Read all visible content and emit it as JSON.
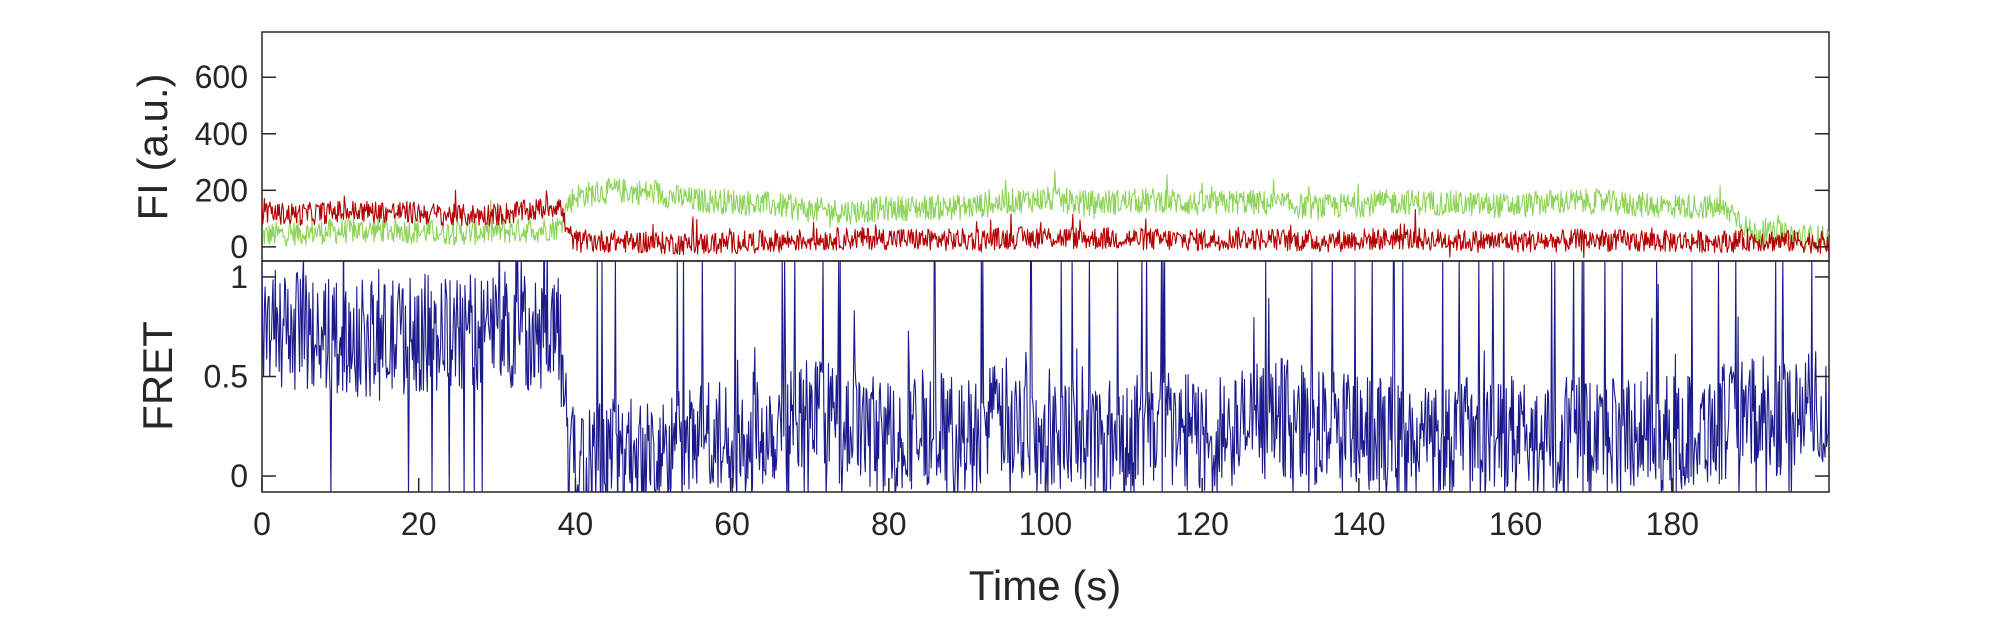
{
  "chart_data": [
    {
      "type": "line",
      "ylabel": "FI (a.u.)",
      "xlim": [
        0,
        200
      ],
      "ylim": [
        -50,
        760
      ],
      "yticks": [
        0,
        200,
        400,
        600
      ],
      "ytick_labels": [
        "0",
        "200",
        "400",
        "600"
      ],
      "grid": false,
      "series": [
        {
          "color": "#8fd45a",
          "x": [
            0,
            5,
            10,
            15,
            20,
            25,
            30,
            35,
            38,
            39,
            40,
            45,
            50,
            55,
            60,
            65,
            70,
            75,
            80,
            85,
            90,
            95,
            100,
            105,
            110,
            115,
            120,
            125,
            130,
            135,
            140,
            145,
            150,
            155,
            160,
            165,
            170,
            175,
            180,
            185,
            188,
            190,
            195,
            200
          ],
          "values": [
            40,
            50,
            55,
            60,
            55,
            50,
            55,
            60,
            70,
            150,
            180,
            200,
            190,
            165,
            160,
            150,
            130,
            125,
            135,
            140,
            140,
            160,
            170,
            155,
            160,
            165,
            150,
            160,
            150,
            140,
            150,
            160,
            155,
            150,
            145,
            160,
            160,
            150,
            145,
            140,
            120,
            50,
            40,
            30
          ],
          "noise": 45
        },
        {
          "color": "#b30000",
          "x": [
            0,
            5,
            10,
            15,
            20,
            25,
            30,
            35,
            38,
            39,
            40,
            45,
            50,
            55,
            60,
            65,
            70,
            75,
            80,
            85,
            90,
            95,
            100,
            105,
            110,
            115,
            120,
            125,
            130,
            135,
            140,
            145,
            150,
            155,
            160,
            165,
            170,
            175,
            180,
            185,
            188,
            190,
            195,
            200
          ],
          "values": [
            120,
            115,
            125,
            125,
            120,
            110,
            115,
            130,
            150,
            50,
            20,
            20,
            15,
            10,
            15,
            20,
            25,
            30,
            30,
            25,
            25,
            30,
            35,
            30,
            30,
            25,
            25,
            30,
            25,
            20,
            25,
            30,
            25,
            20,
            20,
            20,
            25,
            20,
            20,
            20,
            20,
            25,
            20,
            15
          ],
          "noise": 40
        }
      ]
    },
    {
      "type": "line",
      "ylabel": "FRET",
      "xlabel": "Time (s)",
      "xlim": [
        0,
        200
      ],
      "ylim": [
        -0.08,
        1.08
      ],
      "xticks": [
        0,
        20,
        40,
        60,
        80,
        100,
        120,
        140,
        160,
        180
      ],
      "xtick_labels": [
        "0",
        "20",
        "40",
        "60",
        "80",
        "100",
        "120",
        "140",
        "160",
        "180"
      ],
      "yticks": [
        0,
        0.5,
        1
      ],
      "ytick_labels": [
        "0",
        "0.5",
        "1"
      ],
      "grid": false,
      "series": [
        {
          "color": "#1a1a8c",
          "x": [
            0,
            5,
            10,
            15,
            20,
            25,
            30,
            35,
            38,
            39,
            40,
            45,
            50,
            55,
            60,
            65,
            70,
            75,
            80,
            85,
            90,
            95,
            100,
            105,
            110,
            115,
            120,
            125,
            130,
            135,
            140,
            145,
            150,
            155,
            160,
            165,
            170,
            175,
            180,
            185,
            190,
            195,
            200
          ],
          "values": [
            0.75,
            0.72,
            0.7,
            0.68,
            0.72,
            0.7,
            0.75,
            0.72,
            0.75,
            0.1,
            0.05,
            0.1,
            0.1,
            0.15,
            0.2,
            0.25,
            0.3,
            0.25,
            0.2,
            0.25,
            0.2,
            0.3,
            0.25,
            0.2,
            0.2,
            0.25,
            0.2,
            0.25,
            0.3,
            0.25,
            0.2,
            0.2,
            0.2,
            0.2,
            0.2,
            0.2,
            0.2,
            0.25,
            0.2,
            0.25,
            0.3,
            0.3,
            0.35
          ],
          "noise": 0.3
        }
      ]
    }
  ]
}
